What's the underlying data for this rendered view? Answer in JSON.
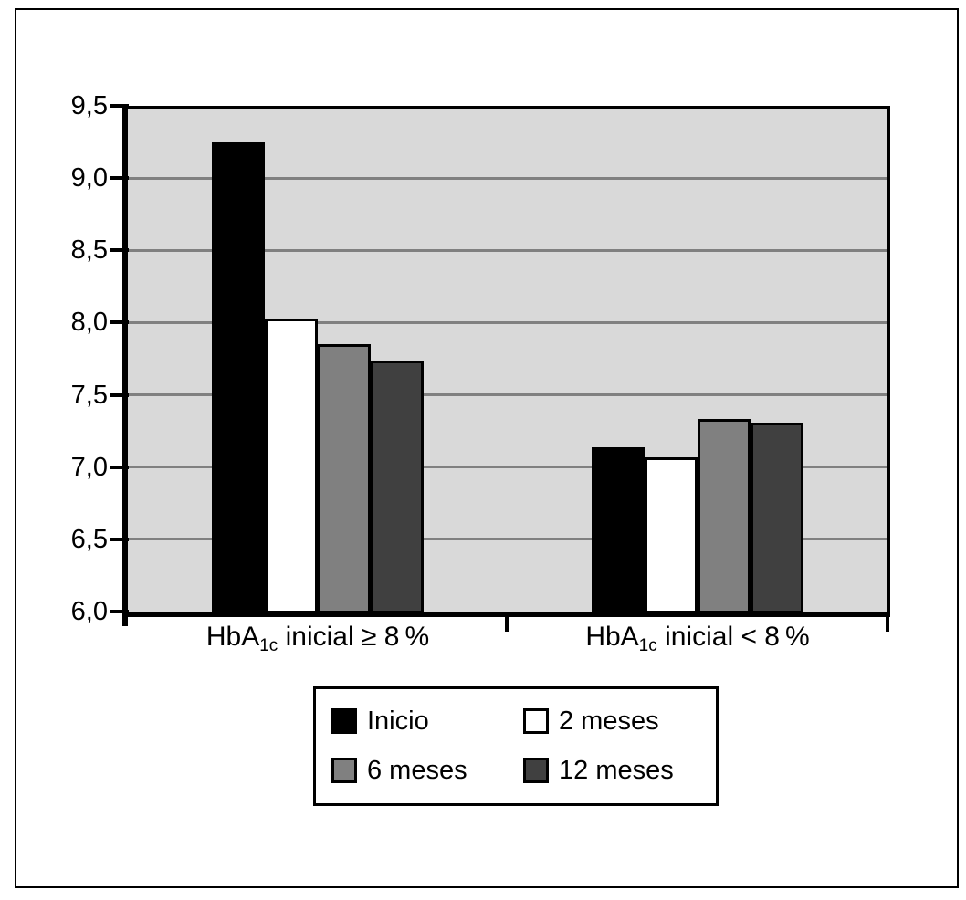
{
  "chart_data": {
    "type": "bar",
    "title": "",
    "xlabel": "",
    "ylabel": "",
    "ylim": [
      6.0,
      9.5
    ],
    "grid": true,
    "legend_position": "bottom-boxed",
    "y_ticks": [
      {
        "v": 9.5,
        "label": "9,5"
      },
      {
        "v": 9.0,
        "label": "9,0"
      },
      {
        "v": 8.5,
        "label": "8,5"
      },
      {
        "v": 8.0,
        "label": "8,0"
      },
      {
        "v": 7.5,
        "label": "7,5"
      },
      {
        "v": 7.0,
        "label": "7,0"
      },
      {
        "v": 6.5,
        "label": "6,5"
      },
      {
        "v": 6.0,
        "label": "6,0"
      }
    ],
    "categories": [
      {
        "pre": "HbA",
        "sub": "1c",
        "post": " inicial ≥ 8 %"
      },
      {
        "pre": "HbA",
        "sub": "1c",
        "post": " inicial < 8 %"
      }
    ],
    "series": [
      {
        "name": "Inicio",
        "color": "#000000",
        "values": [
          9.25,
          7.14
        ]
      },
      {
        "name": "2 meses",
        "color": "#ffffff",
        "values": [
          8.03,
          7.07
        ]
      },
      {
        "name": "6 meses",
        "color": "#808080",
        "values": [
          7.85,
          7.33
        ]
      },
      {
        "name": "12 meses",
        "color": "#404040",
        "values": [
          7.74,
          7.31
        ]
      }
    ],
    "colors": {
      "plot_background": "#d9d9d9",
      "gridline": "#808080",
      "axis": "#000000",
      "bar_border": "#000000",
      "frame_border": "#000000"
    }
  }
}
